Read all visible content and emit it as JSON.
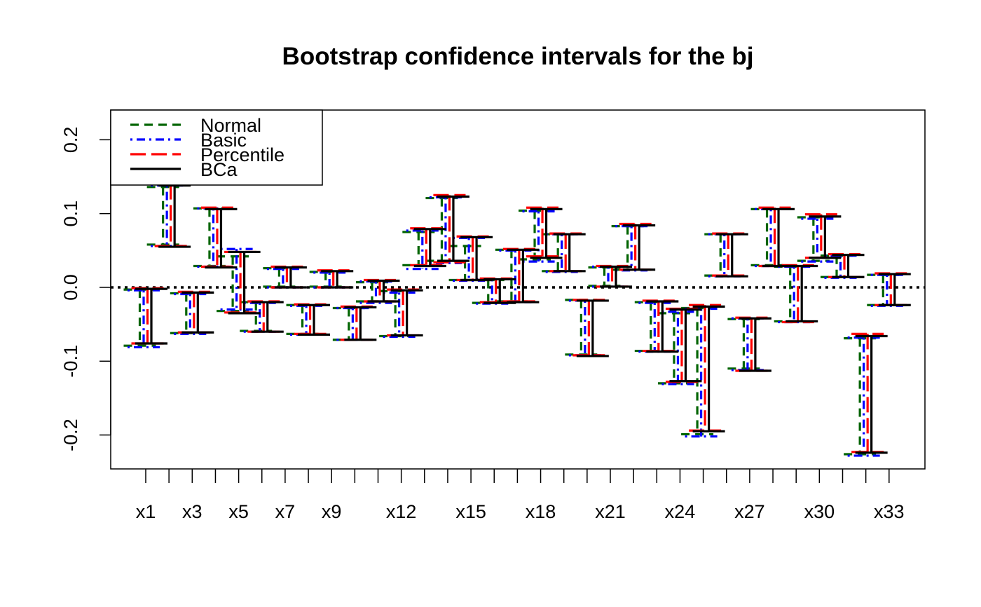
{
  "chart_data": {
    "type": "interval",
    "title": "Bootstrap confidence intervals for the bj",
    "xlabel": "",
    "ylabel": "",
    "ylim": [
      -0.245,
      0.24
    ],
    "yticks": [
      -0.2,
      -0.1,
      0.0,
      0.1,
      0.2
    ],
    "ytick_labels": [
      "-0.2",
      "-0.1",
      "0.0",
      "0.1",
      "0.2"
    ],
    "reference_line": 0.0,
    "categories": [
      "x1",
      "x2",
      "x3",
      "x4",
      "x5",
      "x6",
      "x7",
      "x8",
      "x9",
      "x10",
      "x11",
      "x12",
      "x13",
      "x14",
      "x15",
      "x16",
      "x17",
      "x18",
      "x19",
      "x20",
      "x21",
      "x22",
      "x23",
      "x24",
      "x25",
      "x26",
      "x27",
      "x28",
      "x29",
      "x30",
      "x31",
      "x32",
      "x33"
    ],
    "xtick_labels_shown": [
      "x1",
      "x3",
      "x5",
      "x7",
      "x9",
      "x12",
      "x15",
      "x18",
      "x21",
      "x24",
      "x27",
      "x30",
      "x33"
    ],
    "legend": {
      "position": "top-left",
      "entries": [
        {
          "label": "Normal",
          "color": "#006400",
          "dash": "dashed"
        },
        {
          "label": "Basic",
          "color": "#0000ff",
          "dash": "dotdash"
        },
        {
          "label": "Percentile",
          "color": "#ff0000",
          "dash": "longdash"
        },
        {
          "label": "BCa",
          "color": "#000000",
          "dash": "solid"
        }
      ]
    },
    "series": [
      {
        "name": "Normal",
        "color": "#006400",
        "lower": [
          -0.079,
          0.058,
          -0.062,
          0.029,
          -0.032,
          -0.059,
          0.001,
          -0.063,
          0.001,
          -0.071,
          -0.019,
          -0.066,
          0.03,
          0.036,
          0.01,
          -0.021,
          -0.019,
          0.038,
          0.022,
          -0.091,
          0.002,
          0.024,
          -0.086,
          -0.13,
          -0.199,
          0.016,
          -0.11,
          0.03,
          -0.046,
          0.036,
          0.014,
          -0.226,
          -0.024
        ],
        "upper": [
          -0.003,
          0.136,
          -0.008,
          0.107,
          0.042,
          -0.02,
          0.026,
          -0.024,
          0.021,
          -0.028,
          0.007,
          -0.005,
          0.075,
          0.121,
          0.056,
          0.01,
          0.051,
          0.104,
          0.072,
          -0.017,
          0.027,
          0.083,
          -0.02,
          -0.035,
          -0.028,
          0.072,
          -0.043,
          0.106,
          0.028,
          0.095,
          0.043,
          -0.069,
          0.017
        ]
      },
      {
        "name": "Basic",
        "color": "#0000ff",
        "lower": [
          -0.081,
          0.056,
          -0.063,
          0.028,
          -0.03,
          -0.06,
          0.0,
          -0.064,
          0.0,
          -0.071,
          -0.021,
          -0.067,
          0.025,
          0.033,
          0.009,
          -0.022,
          -0.02,
          0.035,
          0.021,
          -0.092,
          0.001,
          0.023,
          -0.087,
          -0.131,
          -0.202,
          0.015,
          -0.112,
          0.029,
          -0.047,
          0.035,
          0.013,
          -0.228,
          -0.025
        ],
        "upper": [
          -0.004,
          0.138,
          -0.009,
          0.107,
          0.052,
          -0.021,
          0.025,
          -0.025,
          0.02,
          -0.028,
          0.008,
          -0.007,
          0.077,
          0.122,
          0.067,
          0.011,
          0.05,
          0.103,
          0.072,
          -0.018,
          0.028,
          0.083,
          -0.021,
          -0.033,
          -0.029,
          0.072,
          -0.042,
          0.106,
          0.028,
          0.093,
          0.043,
          -0.068,
          0.017
        ]
      },
      {
        "name": "Percentile",
        "color": "#ff0000",
        "lower": [
          -0.076,
          0.056,
          -0.061,
          0.028,
          -0.034,
          -0.06,
          0.0,
          -0.063,
          0.0,
          -0.071,
          -0.019,
          -0.065,
          0.03,
          0.034,
          0.01,
          -0.02,
          -0.019,
          0.042,
          0.022,
          -0.092,
          0.001,
          0.024,
          -0.086,
          -0.128,
          -0.194,
          0.016,
          -0.113,
          0.029,
          -0.047,
          0.04,
          0.014,
          -0.223,
          -0.024
        ],
        "upper": [
          -0.001,
          0.14,
          -0.006,
          0.108,
          0.048,
          -0.019,
          0.028,
          -0.023,
          0.023,
          -0.026,
          0.01,
          -0.003,
          0.08,
          0.125,
          0.069,
          0.012,
          0.052,
          0.108,
          0.073,
          -0.017,
          0.029,
          0.086,
          -0.018,
          -0.029,
          -0.024,
          0.073,
          -0.041,
          0.108,
          0.03,
          0.099,
          0.045,
          -0.063,
          0.019
        ]
      },
      {
        "name": "BCa",
        "color": "#000000",
        "lower": [
          -0.076,
          0.055,
          -0.061,
          0.027,
          -0.035,
          -0.06,
          0.0,
          -0.064,
          0.0,
          -0.071,
          -0.019,
          -0.065,
          0.029,
          0.036,
          0.01,
          -0.021,
          -0.02,
          0.04,
          0.022,
          -0.093,
          0.001,
          0.024,
          -0.087,
          -0.127,
          -0.195,
          0.015,
          -0.113,
          0.029,
          -0.046,
          0.04,
          0.014,
          -0.224,
          -0.024
        ],
        "upper": [
          -0.002,
          0.138,
          -0.007,
          0.106,
          0.048,
          -0.02,
          0.027,
          -0.024,
          0.022,
          -0.027,
          0.009,
          -0.004,
          0.079,
          0.123,
          0.068,
          0.011,
          0.051,
          0.106,
          0.072,
          -0.018,
          0.028,
          0.084,
          -0.019,
          -0.03,
          -0.026,
          0.072,
          -0.042,
          0.106,
          0.029,
          0.096,
          0.044,
          -0.066,
          0.018
        ]
      }
    ]
  }
}
